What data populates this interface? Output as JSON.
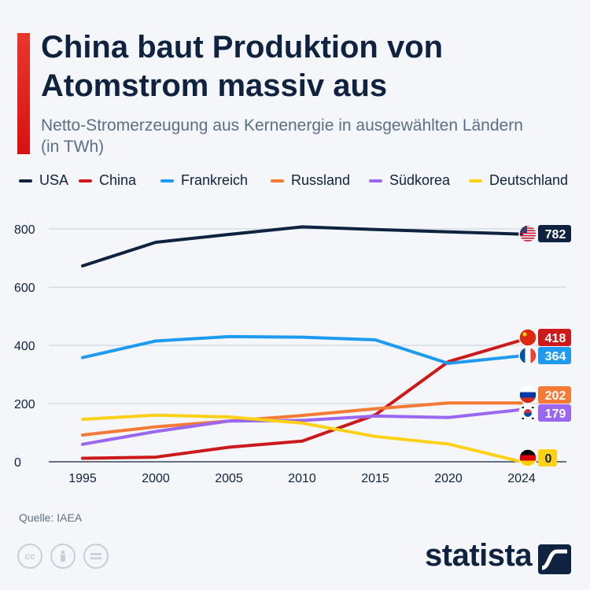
{
  "header": {
    "title": "China baut Produktion von Atomstrom massiv aus",
    "subtitle": "Netto-Stromerzeugung aus Kernenergie in ausgewählten Ländern (in TWh)"
  },
  "footer": {
    "source": "Quelle: IAEA",
    "brand": "statista",
    "cc_icons": [
      "cc-icon",
      "by-icon",
      "nd-icon"
    ]
  },
  "chart_data": {
    "type": "line",
    "x": [
      1995,
      2000,
      2005,
      2010,
      2015,
      2020,
      2024
    ],
    "x_tick_labels": [
      "1995",
      "2000",
      "2005",
      "2010",
      "2015",
      "2020",
      "2024"
    ],
    "y_ticks": [
      0,
      200,
      400,
      600,
      800
    ],
    "ylim": [
      0,
      850
    ],
    "grid": true,
    "legend_placement": "top",
    "series": [
      {
        "name": "USA",
        "color": "#0f2240",
        "flag": "us-flag-icon",
        "end_label": "782",
        "values": [
          673,
          754,
          781,
          807,
          798,
          790,
          782
        ]
      },
      {
        "name": "China",
        "color": "#cc1a1a",
        "flag": "cn-flag-icon",
        "end_label": "418",
        "values": [
          12,
          16,
          50,
          71,
          161,
          344,
          418
        ]
      },
      {
        "name": "Frankreich",
        "color": "#1e9bf0",
        "flag": "fr-flag-icon",
        "end_label": "364",
        "values": [
          358,
          415,
          430,
          428,
          419,
          338,
          364
        ]
      },
      {
        "name": "Russland",
        "color": "#f57a35",
        "flag": "ru-flag-icon",
        "end_label": "202",
        "values": [
          92,
          120,
          140,
          159,
          182,
          202,
          202
        ]
      },
      {
        "name": "Südkorea",
        "color": "#9a68f0",
        "flag": "kr-flag-icon",
        "end_label": "179",
        "values": [
          60,
          104,
          140,
          142,
          157,
          152,
          179
        ]
      },
      {
        "name": "Deutschland",
        "color": "#fcd116",
        "flag": "de-flag-icon",
        "end_label": "0",
        "values": [
          146,
          160,
          154,
          133,
          87,
          61,
          0
        ]
      }
    ]
  }
}
